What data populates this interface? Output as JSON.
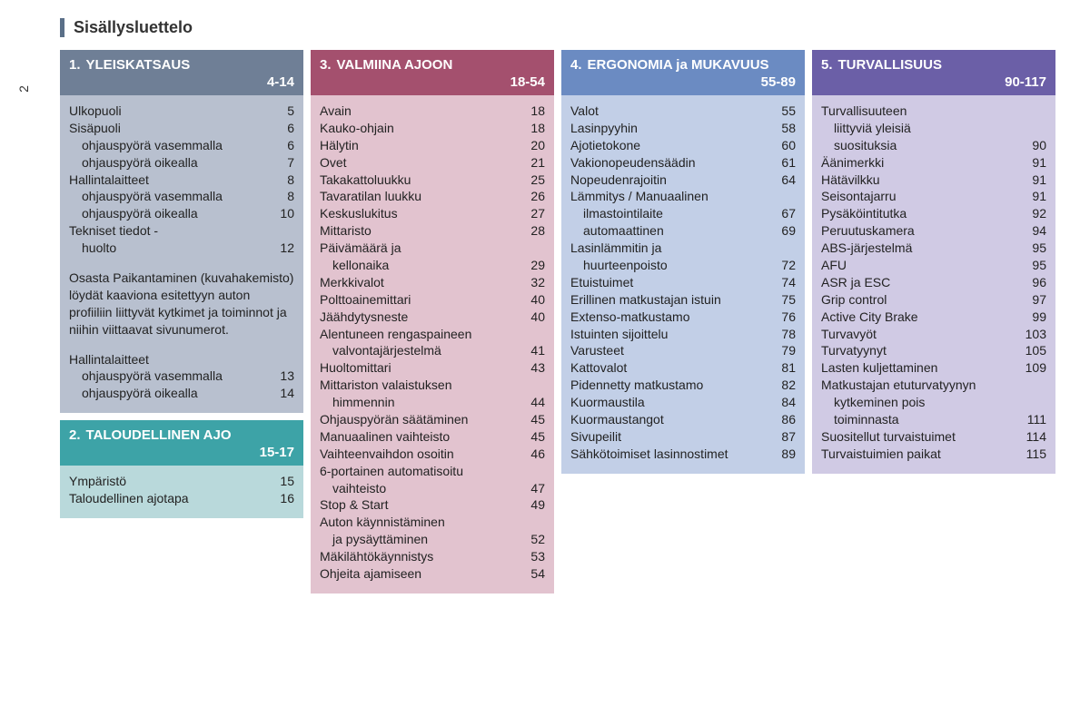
{
  "page_number": "2",
  "page_title": "Sisällysluettelo",
  "sections": {
    "s1": {
      "num": "1.",
      "title": "YLEISKATSAUS",
      "range": "4-14",
      "items": [
        {
          "label": "Ulkopuoli",
          "page": "5"
        },
        {
          "label": "Sisäpuoli",
          "page": "6"
        },
        {
          "label": "ohjauspyörä vasemmalla",
          "page": "6",
          "sub": true
        },
        {
          "label": "ohjauspyörä oikealla",
          "page": "7",
          "sub": true
        },
        {
          "label": "Hallintalaitteet",
          "page": "8"
        },
        {
          "label": "ohjauspyörä vasemmalla",
          "page": "8",
          "sub": true
        },
        {
          "label": "ohjauspyörä oikealla",
          "page": "10",
          "sub": true
        },
        {
          "label": "Tekniset tiedot -",
          "page": ""
        },
        {
          "label": "huolto",
          "page": "12",
          "sub": true
        }
      ],
      "note": "Osasta Paikantaminen (kuvahakemisto) löydät kaaviona esitettyyn auton profiiliin liittyvät kytkimet ja toiminnot ja niihin viittaavat sivunumerot.",
      "items2": [
        {
          "label": "Hallintalaitteet",
          "page": ""
        },
        {
          "label": "ohjauspyörä vasemmalla",
          "page": "13",
          "sub": true
        },
        {
          "label": "ohjauspyörä oikealla",
          "page": "14",
          "sub": true
        }
      ]
    },
    "s2": {
      "num": "2.",
      "title": "TALOUDELLINEN AJO",
      "range": "15-17",
      "items": [
        {
          "label": "Ympäristö",
          "page": "15"
        },
        {
          "label": "Taloudellinen ajotapa",
          "page": "16"
        }
      ]
    },
    "s3": {
      "num": "3.",
      "title": "VALMIINA AJOON",
      "range": "18-54",
      "items": [
        {
          "label": "Avain",
          "page": "18"
        },
        {
          "label": "Kauko-ohjain",
          "page": "18"
        },
        {
          "label": "Hälytin",
          "page": "20"
        },
        {
          "label": "Ovet",
          "page": "21"
        },
        {
          "label": "Takakattoluukku",
          "page": "25"
        },
        {
          "label": "Tavaratilan luukku",
          "page": "26"
        },
        {
          "label": "Keskuslukitus",
          "page": "27"
        },
        {
          "label": "Mittaristo",
          "page": "28"
        },
        {
          "label": "Päivämäärä ja",
          "page": ""
        },
        {
          "label": "kellonaika",
          "page": "29",
          "sub": true
        },
        {
          "label": "Merkkivalot",
          "page": "32"
        },
        {
          "label": "Polttoainemittari",
          "page": "40"
        },
        {
          "label": "Jäähdytysneste",
          "page": "40"
        },
        {
          "label": "Alentuneen rengaspaineen",
          "page": ""
        },
        {
          "label": "valvontajärjestelmä",
          "page": "41",
          "sub": true
        },
        {
          "label": "Huoltomittari",
          "page": "43"
        },
        {
          "label": "Mittariston valaistuksen",
          "page": ""
        },
        {
          "label": "himmennin",
          "page": "44",
          "sub": true
        },
        {
          "label": "Ohjauspyörän säätäminen",
          "page": "45"
        },
        {
          "label": "Manuaalinen vaihteisto",
          "page": "45"
        },
        {
          "label": "Vaihteenvaihdon osoitin",
          "page": "46"
        },
        {
          "label": "6-portainen automatisoitu",
          "page": ""
        },
        {
          "label": "vaihteisto",
          "page": "47",
          "sub": true
        },
        {
          "label": "Stop & Start",
          "page": "49"
        },
        {
          "label": "Auton käynnistäminen",
          "page": ""
        },
        {
          "label": "ja pysäyttäminen",
          "page": "52",
          "sub": true
        },
        {
          "label": "Mäkilähtökäynnistys",
          "page": "53"
        },
        {
          "label": "Ohjeita ajamiseen",
          "page": "54"
        }
      ]
    },
    "s4": {
      "num": "4.",
      "title": "ERGONOMIA ja MUKAVUUS",
      "range": "55-89",
      "items": [
        {
          "label": "Valot",
          "page": "55"
        },
        {
          "label": "Lasinpyyhin",
          "page": "58"
        },
        {
          "label": "Ajotietokone",
          "page": "60"
        },
        {
          "label": "Vakionopeudensäädin",
          "page": "61"
        },
        {
          "label": "Nopeudenrajoitin",
          "page": "64"
        },
        {
          "label": "Lämmitys / Manuaalinen",
          "page": ""
        },
        {
          "label": "ilmastointilaite",
          "page": "67",
          "sub": true
        },
        {
          "label": "automaattinen",
          "page": "69",
          "sub": true
        },
        {
          "label": "Lasinlämmitin ja",
          "page": ""
        },
        {
          "label": "huurteenpoisto",
          "page": "72",
          "sub": true
        },
        {
          "label": "Etuistuimet",
          "page": "74"
        },
        {
          "label": "Erillinen matkustajan istuin",
          "page": "75"
        },
        {
          "label": "Extenso-matkustamo",
          "page": "76"
        },
        {
          "label": "Istuinten sijoittelu",
          "page": "78"
        },
        {
          "label": "Varusteet",
          "page": "79"
        },
        {
          "label": "Kattovalot",
          "page": "81"
        },
        {
          "label": "Pidennetty matkustamo",
          "page": "82"
        },
        {
          "label": "Kuormaustila",
          "page": "84"
        },
        {
          "label": "Kuormaustangot",
          "page": "86"
        },
        {
          "label": "Sivupeilit",
          "page": "87"
        },
        {
          "label": "Sähkötoimiset lasinnostimet",
          "page": "89"
        }
      ]
    },
    "s5": {
      "num": "5.",
      "title": "TURVALLISUUS",
      "range": "90-117",
      "items": [
        {
          "label": "Turvallisuuteen",
          "page": ""
        },
        {
          "label": "liittyviä yleisiä",
          "page": "",
          "sub": true
        },
        {
          "label": "suosituksia",
          "page": "90",
          "sub": true
        },
        {
          "label": "Äänimerkki",
          "page": "91"
        },
        {
          "label": "Hätävilkku",
          "page": "91"
        },
        {
          "label": "Seisontajarru",
          "page": "91"
        },
        {
          "label": "Pysäköintitutka",
          "page": "92"
        },
        {
          "label": "Peruutuskamera",
          "page": "94"
        },
        {
          "label": "ABS-järjestelmä",
          "page": "95"
        },
        {
          "label": "AFU",
          "page": "95"
        },
        {
          "label": "ASR ja ESC",
          "page": "96"
        },
        {
          "label": "Grip control",
          "page": "97"
        },
        {
          "label": "Active City Brake",
          "page": "99"
        },
        {
          "label": "Turvavyöt",
          "page": "103"
        },
        {
          "label": "Turvatyynyt",
          "page": "105"
        },
        {
          "label": "Lasten kuljettaminen",
          "page": "109"
        },
        {
          "label": "Matkustajan etuturvatyynyn",
          "page": ""
        },
        {
          "label": "kytkeminen pois",
          "page": "",
          "sub": true
        },
        {
          "label": "toiminnasta",
          "page": "111",
          "sub": true
        },
        {
          "label": "Suositellut turvaistuimet",
          "page": "114"
        },
        {
          "label": "Turvaistuimien paikat",
          "page": "115"
        }
      ]
    }
  }
}
